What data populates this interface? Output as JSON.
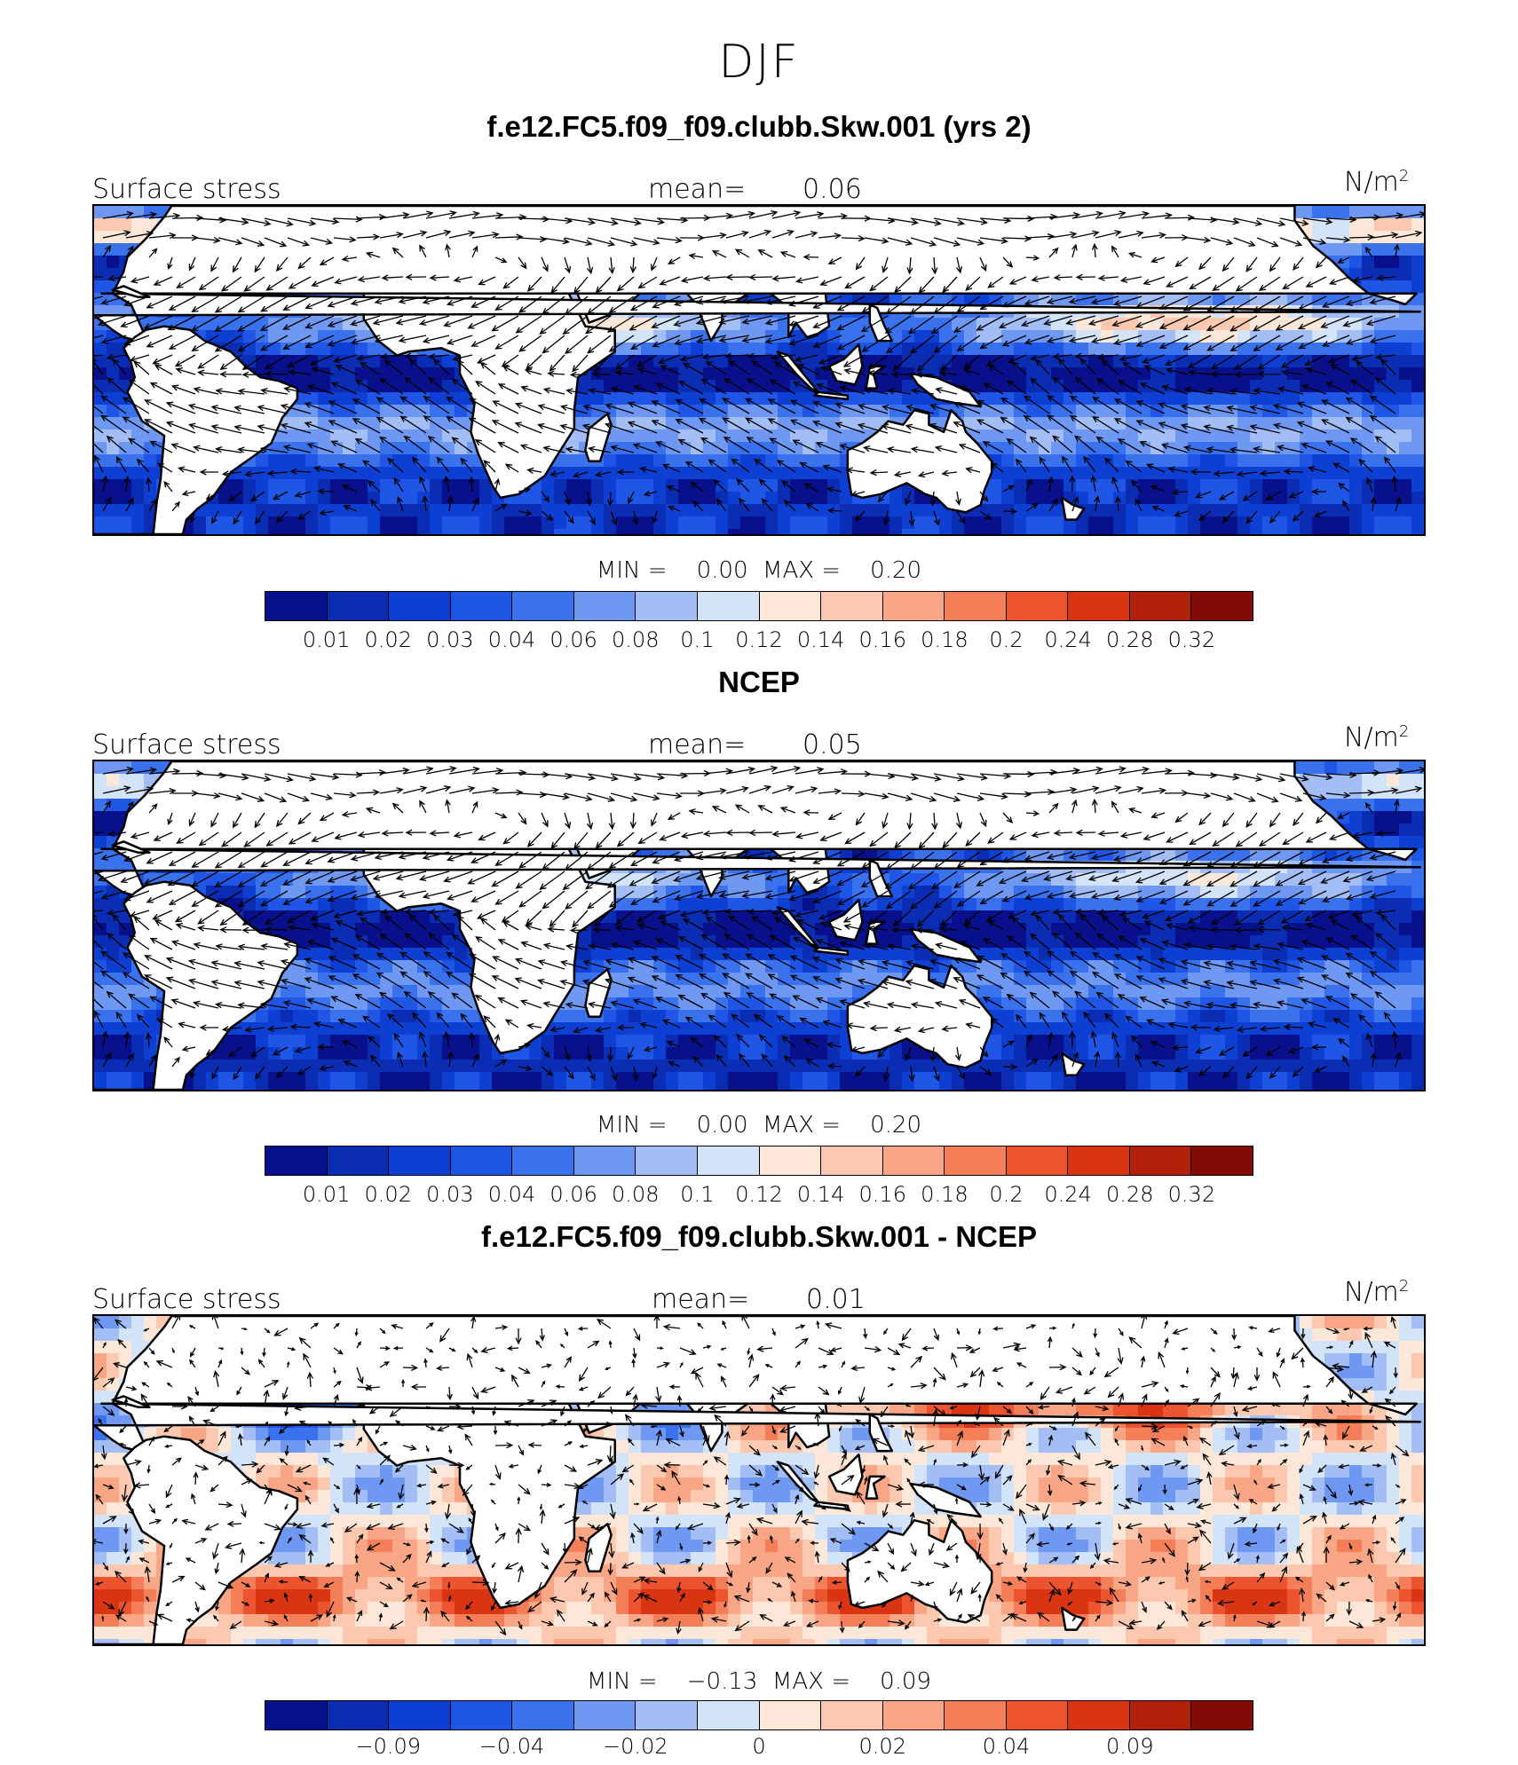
{
  "title": "DJF",
  "palette": [
    "#08108c",
    "#0b2db4",
    "#0d40d2",
    "#1f56e6",
    "#3a72ee",
    "#6f98f2",
    "#a3bdf5",
    "#d3e3f8",
    "#fde7d8",
    "#fcc8af",
    "#f9a686",
    "#f47e57",
    "#ec5430",
    "#d93512",
    "#b2200b",
    "#830a05"
  ],
  "land_color": "#ffffff",
  "panels": [
    {
      "title": "f.e12.FC5.f09_f09.clubb.Skw.001 (yrs 2)",
      "variable": "Surface stress",
      "mean_label": "mean=",
      "mean_value": "0.06",
      "units": "N/m",
      "units_sup": "2",
      "min_label": "MIN =",
      "min_value": "0.00",
      "max_label": "MAX =",
      "max_value": "0.20",
      "colorbar_ticks": [
        "0.01",
        "0.02",
        "0.03",
        "0.04",
        "0.06",
        "0.08",
        "0.1",
        "0.12",
        "0.14",
        "0.16",
        "0.18",
        "0.2",
        "0.24",
        "0.28",
        "0.32"
      ],
      "field_kind": "magnitude"
    },
    {
      "title": "NCEP",
      "variable": "Surface stress",
      "mean_label": "mean=",
      "mean_value": "0.05",
      "units": "N/m",
      "units_sup": "2",
      "min_label": "MIN =",
      "min_value": "0.00",
      "max_label": "MAX =",
      "max_value": "0.20",
      "colorbar_ticks": [
        "0.01",
        "0.02",
        "0.03",
        "0.04",
        "0.06",
        "0.08",
        "0.1",
        "0.12",
        "0.14",
        "0.16",
        "0.18",
        "0.2",
        "0.24",
        "0.28",
        "0.32"
      ],
      "field_kind": "magnitude"
    },
    {
      "title": "f.e12.FC5.f09_f09.clubb.Skw.001 - NCEP",
      "variable": "Surface stress",
      "mean_label": "mean=",
      "mean_value": "0.01",
      "units": "N/m",
      "units_sup": "2",
      "min_label": "MIN =",
      "min_value": "−0.13",
      "max_label": "MAX =",
      "max_value": "0.09",
      "colorbar_ticks": [
        "−0.09",
        "−0.04",
        "−0.02",
        "0",
        "0.02",
        "0.04",
        "0.09"
      ],
      "field_kind": "difference"
    }
  ]
}
